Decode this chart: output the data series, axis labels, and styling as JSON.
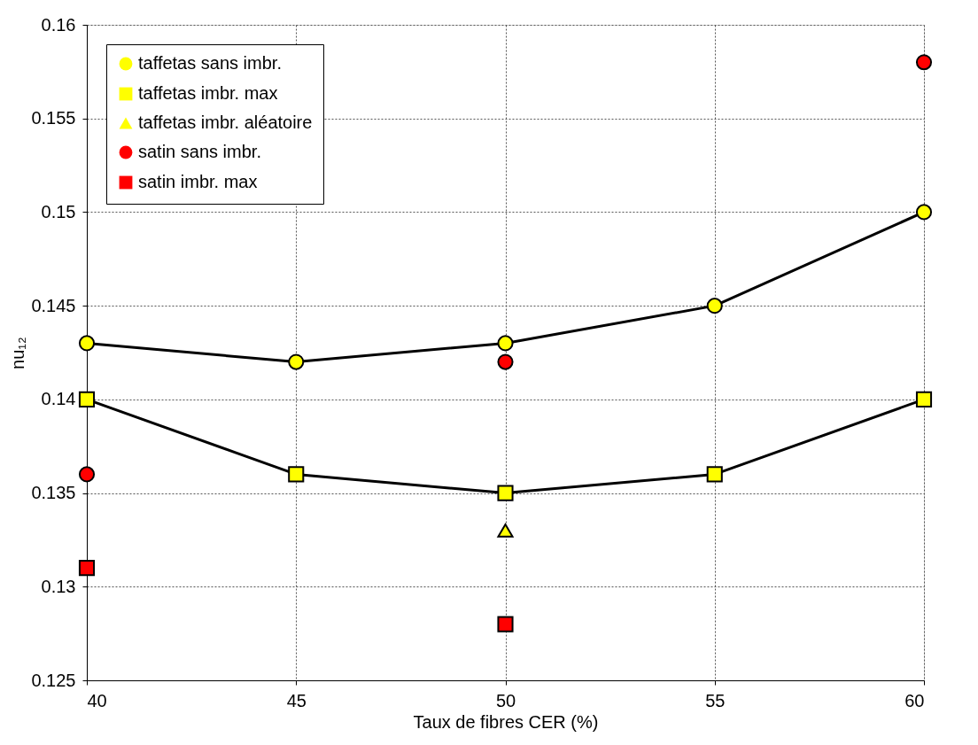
{
  "chart_data": {
    "type": "line",
    "xlabel": "Taux de fibres CER (%)",
    "ylabel": "nu₁₂",
    "xlim": [
      40,
      60
    ],
    "xticks": [
      40,
      45,
      50,
      55,
      60
    ],
    "ylim": [
      0.125,
      0.16
    ],
    "yticks": [
      0.125,
      0.13,
      0.135,
      0.14,
      0.145,
      0.15,
      0.155,
      0.16
    ],
    "grid": true,
    "legend": "top left",
    "series": [
      {
        "name": "taffetas sans imbr.",
        "line_style": "solid",
        "marker": "circle",
        "color": "#ffff00",
        "x": [
          40,
          45,
          50,
          55,
          60
        ],
        "values": [
          0.143,
          0.142,
          0.143,
          0.145,
          0.15
        ]
      },
      {
        "name": "taffetas imbr. max",
        "line_style": "solid",
        "marker": "square",
        "color": "#ffff00",
        "x": [
          40,
          45,
          50,
          55,
          60
        ],
        "values": [
          0.14,
          0.136,
          0.135,
          0.136,
          0.14
        ]
      },
      {
        "name": "taffetas imbr. aléatoire",
        "type": "scatter",
        "marker": "triangle",
        "color": "#ffff00",
        "x": [
          50
        ],
        "values": [
          0.133
        ]
      },
      {
        "name": "satin sans imbr.",
        "type": "scatter",
        "marker": "circle",
        "color": "#ff0000",
        "x": [
          40,
          50,
          60
        ],
        "values": [
          0.136,
          0.142,
          0.158
        ]
      },
      {
        "name": "satin imbr. max",
        "type": "scatter",
        "marker": "square",
        "color": "#ff0000",
        "x": [
          40,
          50
        ],
        "values": [
          0.131,
          0.128
        ]
      }
    ]
  }
}
